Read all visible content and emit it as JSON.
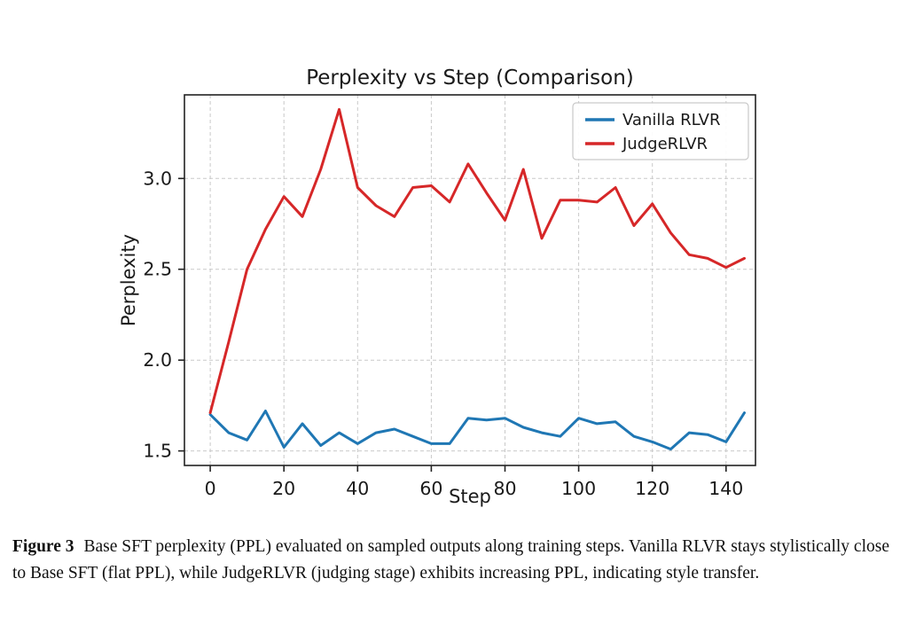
{
  "figure": {
    "caption_label": "Figure 3",
    "caption_text": "Base SFT perplexity (PPL) evaluated on sampled outputs along training steps. Vanilla RLVR stays stylistically close to Base SFT (flat PPL), while JudgeRLVR (judging stage) exhibits increasing PPL, indicating style transfer."
  },
  "chart_data": {
    "type": "line",
    "title": "Perplexity vs Step (Comparison)",
    "xlabel": "Step",
    "ylabel": "Perplexity",
    "x": [
      0,
      5,
      10,
      15,
      20,
      25,
      30,
      35,
      40,
      45,
      50,
      55,
      60,
      65,
      70,
      75,
      80,
      85,
      90,
      95,
      100,
      105,
      110,
      115,
      120,
      125,
      130,
      135,
      140,
      145
    ],
    "series": [
      {
        "name": "Vanilla RLVR",
        "color": "#1f77b4",
        "values": [
          1.7,
          1.6,
          1.56,
          1.72,
          1.52,
          1.65,
          1.53,
          1.6,
          1.54,
          1.6,
          1.62,
          1.58,
          1.54,
          1.54,
          1.68,
          1.67,
          1.68,
          1.63,
          1.6,
          1.58,
          1.68,
          1.65,
          1.66,
          1.58,
          1.55,
          1.51,
          1.6,
          1.59,
          1.55,
          1.71
        ]
      },
      {
        "name": "JudgeRLVR",
        "color": "#d62728",
        "values": [
          1.71,
          2.1,
          2.5,
          2.72,
          2.9,
          2.79,
          3.05,
          3.38,
          2.95,
          2.85,
          2.79,
          2.95,
          2.96,
          2.87,
          3.08,
          2.92,
          2.77,
          3.05,
          2.67,
          2.88,
          2.88,
          2.87,
          2.95,
          2.74,
          2.86,
          2.7,
          2.58,
          2.56,
          2.51,
          2.56
        ]
      }
    ],
    "xlim": [
      -7,
      148
    ],
    "ylim": [
      1.42,
      3.46
    ],
    "xticks": [
      0,
      20,
      40,
      60,
      80,
      100,
      120,
      140
    ],
    "xtick_labels": [
      "0",
      "20",
      "40",
      "60",
      "80",
      "100",
      "120",
      "140"
    ],
    "yticks": [
      1.5,
      2.0,
      2.5,
      3.0
    ],
    "ytick_labels": [
      "1.5",
      "2.0",
      "2.5",
      "3.0"
    ],
    "grid": true,
    "grid_style": "dashed",
    "legend_position": "top-right",
    "axis_color": "#222222",
    "grid_color": "#c9c9c9",
    "text_color": "#1a1a1a"
  }
}
